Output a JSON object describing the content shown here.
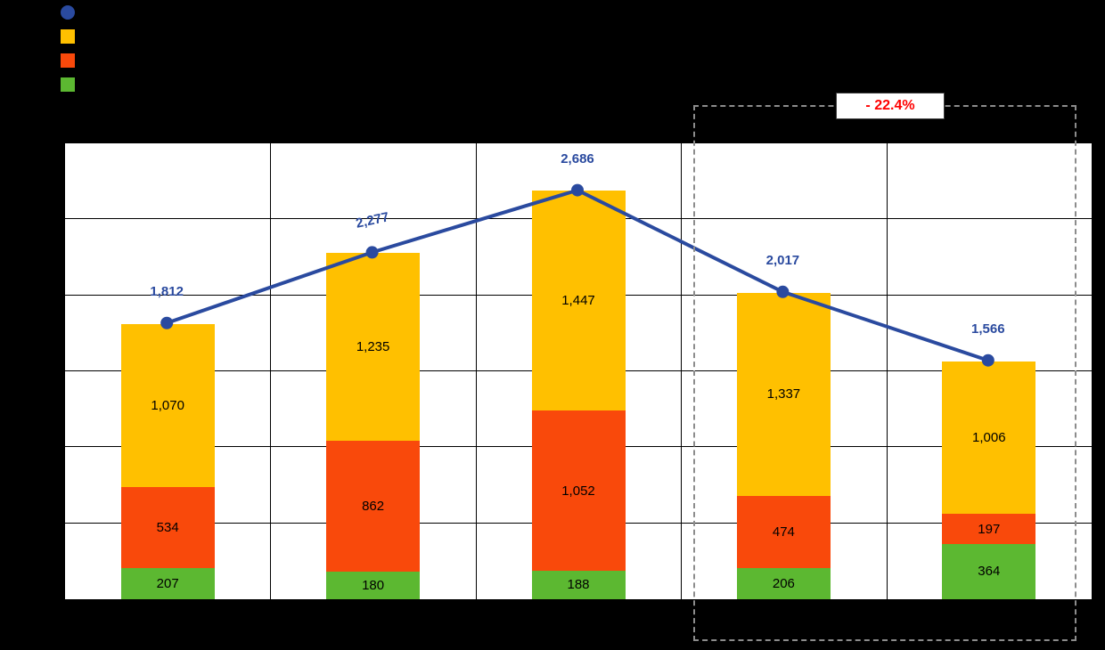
{
  "annotation": {
    "label": "- 22.4%",
    "color": "#FF0000"
  },
  "legend": {
    "position": "top-left",
    "items": [
      {
        "name": "legend-marker-total-line",
        "shape": "circle",
        "color": "#2A4A9F"
      },
      {
        "name": "legend-marker-yellow-series",
        "shape": "square",
        "color": "#FFC000"
      },
      {
        "name": "legend-marker-orange-series",
        "shape": "square",
        "color": "#F9490B"
      },
      {
        "name": "legend-marker-green-series",
        "shape": "square",
        "color": "#5CB831"
      }
    ]
  },
  "chart_data": {
    "type": "bar",
    "subtype": "stacked-column-with-line",
    "background": "#000000",
    "plot_background": "#FFFFFF",
    "grid": true,
    "grid_color": "#000000",
    "legend_position": "top-left",
    "categories": [
      "",
      "",
      "",
      "",
      ""
    ],
    "series": [
      {
        "name": "green-bottom-segment",
        "color": "#5CB831",
        "values": [
          207,
          180,
          188,
          206,
          364
        ],
        "labels": [
          "207",
          "180",
          "188",
          "206",
          "364"
        ]
      },
      {
        "name": "orange-middle-segment",
        "color": "#F9490B",
        "values": [
          534,
          862,
          1052,
          474,
          197
        ],
        "labels": [
          "534",
          "862",
          "1,052",
          "474",
          "197"
        ]
      },
      {
        "name": "yellow-top-segment",
        "color": "#FFC000",
        "values": [
          1070,
          1235,
          1447,
          1337,
          1006
        ],
        "labels": [
          "1,070",
          "1,235",
          "1,447",
          "1,337",
          "1,006"
        ]
      }
    ],
    "line_series": {
      "name": "total-line",
      "color": "#2A4A9F",
      "values": [
        1812,
        2277,
        2686,
        2017,
        1566
      ],
      "labels": [
        "1,812",
        "2,277",
        "2,686",
        "2,017",
        "1,566"
      ]
    },
    "ylim": [
      0,
      3000
    ],
    "y_step": 500,
    "highlight": {
      "style": "dashed-rectangle",
      "covers_last_categories": 2,
      "label": "- 22.4%"
    }
  }
}
